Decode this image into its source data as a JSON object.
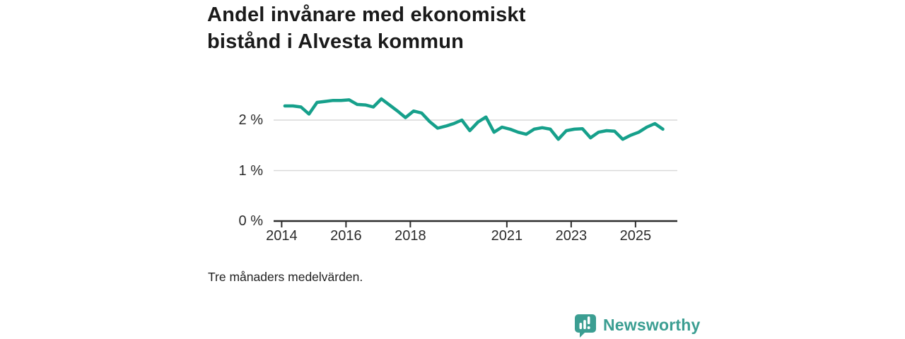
{
  "title_lines": [
    "Andel invånare med ekonomiskt",
    "bistånd i Alvesta kommun"
  ],
  "footnote": "Tre månaders medelvärden.",
  "branding": {
    "name": "Newsworthy",
    "icon": "newsworthy-bar-chart-bubble-icon",
    "color": "#3b9e92"
  },
  "colors": {
    "line": "#16a08b",
    "grid": "#d9d9d9",
    "axis": "#2d2d2d",
    "title_text": "#1a1a1a",
    "tick_text": "#2b2b2b"
  },
  "chart_data": {
    "type": "line",
    "title": "Andel invånare med ekonomiskt bistånd i Alvesta kommun",
    "note": "Tre månaders medelvärden.",
    "xlabel": "",
    "ylabel": "",
    "grid": "horizontal",
    "legend": "none",
    "xlim": [
      2013.75,
      2026.3
    ],
    "ylim": [
      0,
      2.7
    ],
    "x_ticks": [
      2014,
      2016,
      2018,
      2021,
      2023,
      2025
    ],
    "y_ticks": [
      {
        "value": 0,
        "label": "0 %"
      },
      {
        "value": 1,
        "label": "1 %"
      },
      {
        "value": 2,
        "label": "2 %"
      }
    ],
    "series": [
      {
        "name": "Andel invånare med ekonomiskt bistånd (tre månaders medelvärden), %",
        "color": "#16a08b",
        "x": [
          2014.1,
          2014.35,
          2014.6,
          2014.85,
          2015.1,
          2015.35,
          2015.6,
          2015.85,
          2016.1,
          2016.35,
          2016.6,
          2016.85,
          2017.1,
          2017.35,
          2017.6,
          2017.85,
          2018.1,
          2018.35,
          2018.6,
          2018.85,
          2019.1,
          2019.35,
          2019.6,
          2019.85,
          2020.1,
          2020.35,
          2020.6,
          2020.85,
          2021.1,
          2021.35,
          2021.6,
          2021.85,
          2022.1,
          2022.35,
          2022.6,
          2022.85,
          2023.1,
          2023.35,
          2023.6,
          2023.85,
          2024.1,
          2024.35,
          2024.6,
          2024.85,
          2025.1,
          2025.35,
          2025.6,
          2025.85
        ],
        "y": [
          2.28,
          2.28,
          2.26,
          2.12,
          2.35,
          2.37,
          2.39,
          2.39,
          2.4,
          2.31,
          2.3,
          2.26,
          2.42,
          2.3,
          2.18,
          2.05,
          2.18,
          2.14,
          1.97,
          1.84,
          1.88,
          1.93,
          2.0,
          1.79,
          1.96,
          2.06,
          1.76,
          1.86,
          1.82,
          1.76,
          1.72,
          1.82,
          1.85,
          1.82,
          1.62,
          1.79,
          1.82,
          1.83,
          1.65,
          1.76,
          1.79,
          1.78,
          1.62,
          1.7,
          1.76,
          1.86,
          1.93,
          1.82
        ]
      }
    ]
  }
}
